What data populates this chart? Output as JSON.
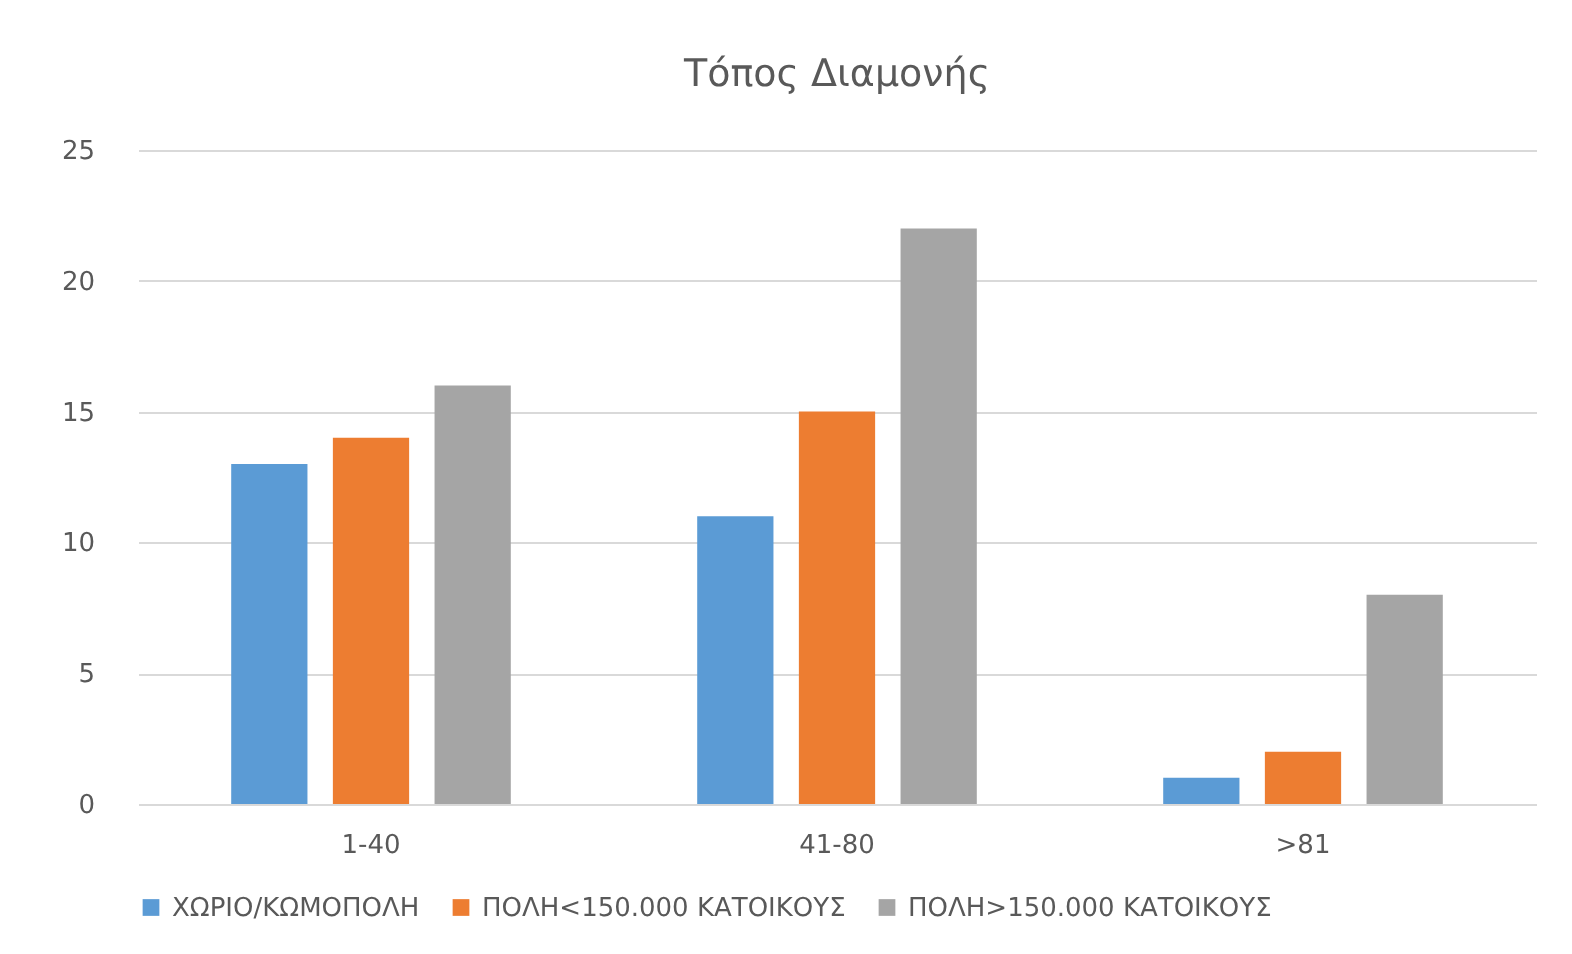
{
  "chart_data": {
    "type": "bar",
    "title": "Τόπος Διαμονής",
    "categories": [
      "1-40",
      "41-80",
      ">81"
    ],
    "series": [
      {
        "name": "ΧΩΡΙΟ/ΚΩΜΟΠΟΛΗ",
        "color": "#5b9bd5",
        "values": [
          13,
          11,
          1
        ]
      },
      {
        "name": "ΠΟΛΗ<150.000 ΚΑΤΟΙΚΟΥΣ",
        "color": "#ed7d31",
        "values": [
          14,
          15,
          2
        ]
      },
      {
        "name": "ΠΟΛΗ>150.000 ΚΑΤΟΙΚΟΥΣ",
        "color": "#a5a5a5",
        "values": [
          16,
          22,
          8
        ]
      }
    ],
    "ylim": [
      0,
      25
    ],
    "yticks": [
      0,
      5,
      10,
      15,
      20,
      25
    ],
    "grid": "y",
    "legend": "bottom"
  }
}
